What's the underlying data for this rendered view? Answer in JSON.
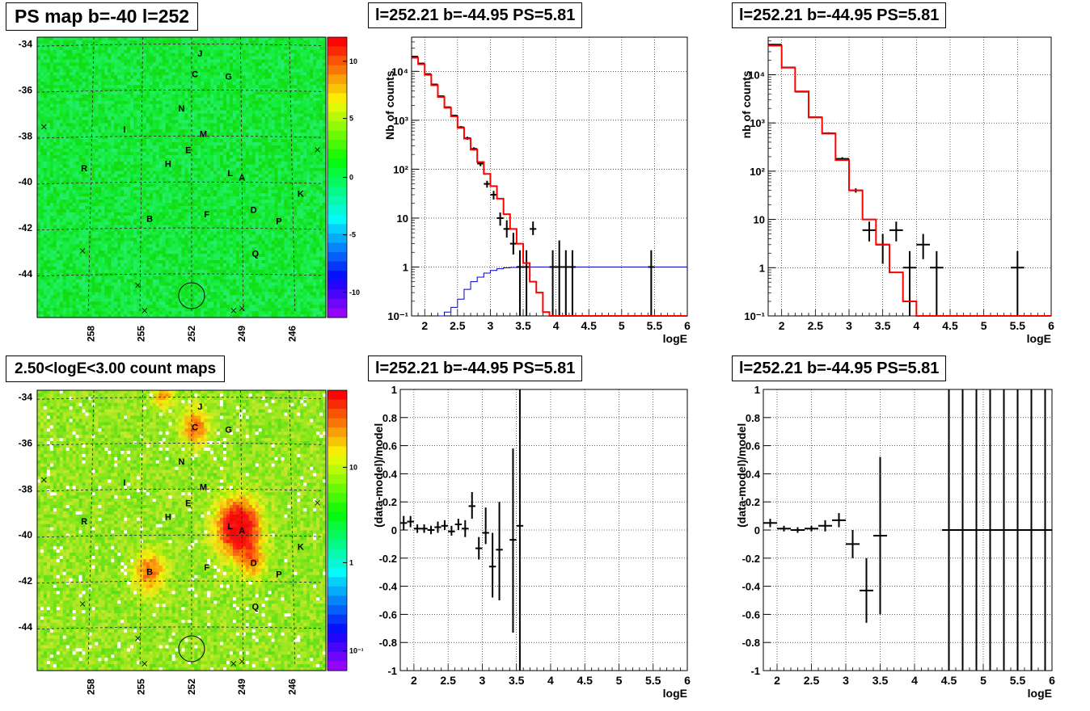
{
  "colors": {
    "red_model": "#ff0000",
    "blue_curve": "#0000cc",
    "data": "#000000"
  },
  "chart_data": [
    {
      "type": "heatmap",
      "title": "PS map b=-40 l=252",
      "x_ticks": [
        "258",
        "255",
        "252",
        "249",
        "246"
      ],
      "y_ticks": [
        "-34",
        "-36",
        "-38",
        "-40",
        "-42",
        "-44"
      ],
      "colorbar_ticks": [
        "10",
        "5",
        "0",
        "-5",
        "-10"
      ],
      "sources": [
        {
          "name": "J",
          "l": 251.5,
          "b": -34.4
        },
        {
          "name": "C",
          "l": 251.8,
          "b": -35.3
        },
        {
          "name": "G",
          "l": 249.8,
          "b": -35.4
        },
        {
          "name": "N",
          "l": 252.6,
          "b": -36.8
        },
        {
          "name": "I",
          "l": 256.0,
          "b": -37.7
        },
        {
          "name": "M",
          "l": 251.3,
          "b": -37.9
        },
        {
          "name": "E",
          "l": 252.2,
          "b": -38.6
        },
        {
          "name": "R",
          "l": 258.4,
          "b": -39.4
        },
        {
          "name": "H",
          "l": 253.4,
          "b": -39.2
        },
        {
          "name": "L",
          "l": 249.7,
          "b": -39.6
        },
        {
          "name": "A",
          "l": 249.0,
          "b": -39.8
        },
        {
          "name": "K",
          "l": 245.5,
          "b": -40.5
        },
        {
          "name": "D",
          "l": 248.3,
          "b": -41.2
        },
        {
          "name": "F",
          "l": 251.1,
          "b": -41.4
        },
        {
          "name": "P",
          "l": 246.8,
          "b": -41.7
        },
        {
          "name": "B",
          "l": 254.5,
          "b": -41.6
        },
        {
          "name": "Q",
          "l": 248.2,
          "b": -43.1
        }
      ]
    },
    {
      "type": "line",
      "title": "l=252.21 b=-44.95 PS=5.81",
      "xlabel": "logE",
      "ylabel": "Nb of counts",
      "yscale": "log",
      "xlim": [
        1.8,
        6.0
      ],
      "ylim": [
        0.1,
        50000
      ],
      "x_ticks": [
        "2",
        "2.5",
        "3",
        "3.5",
        "4",
        "4.5",
        "5",
        "5.5",
        "6"
      ],
      "y_ticks": [
        "10⁻¹",
        "1",
        "10",
        "10²",
        "10³",
        "10⁴"
      ],
      "grid": true,
      "series": [
        {
          "kind": "step",
          "color": "#ff0000",
          "edges": [
            1.8,
            1.9,
            2.0,
            2.1,
            2.2,
            2.3,
            2.4,
            2.5,
            2.6,
            2.7,
            2.8,
            2.9,
            3.0,
            3.1,
            3.2,
            3.3,
            3.4,
            3.5,
            3.6,
            3.7,
            3.8,
            3.9,
            4.0,
            4.1,
            4.2,
            4.3,
            4.4,
            4.5,
            4.6,
            4.7,
            4.8,
            4.9,
            5.0,
            5.1,
            5.2,
            5.3,
            5.4,
            5.5,
            5.6,
            5.7,
            5.8,
            5.9,
            6.0
          ],
          "values": [
            19000,
            14000,
            8500,
            5200,
            3000,
            1800,
            1200,
            700,
            420,
            250,
            140,
            80,
            45,
            25,
            12,
            6,
            3,
            1.2,
            0.5,
            0.3,
            0.12,
            0.1,
            0.1,
            0.1,
            0.1,
            0.1,
            0.1,
            0.1,
            0.1,
            0.1,
            0.1,
            0.1,
            0.1,
            0.1,
            0.1,
            0.1,
            0.1,
            0.1,
            0.1,
            0.1,
            0.1,
            0.1
          ]
        },
        {
          "kind": "step",
          "color": "#0000cc",
          "edges": [
            2.2,
            2.3,
            2.4,
            2.5,
            2.6,
            2.7,
            2.8,
            2.9,
            3.0,
            3.1,
            3.2,
            3.3,
            3.4,
            3.5,
            3.6,
            6.0
          ],
          "values": [
            0.1,
            0.12,
            0.15,
            0.22,
            0.35,
            0.5,
            0.62,
            0.75,
            0.85,
            0.92,
            0.96,
            0.98,
            1.0,
            1.0,
            1.0,
            1.0
          ]
        },
        {
          "kind": "errorbar",
          "color": "#000000",
          "x": [
            1.85,
            1.95,
            2.05,
            2.15,
            2.25,
            2.35,
            2.45,
            2.55,
            2.65,
            2.75,
            2.85,
            2.95,
            3.05,
            3.15,
            3.25,
            3.35,
            3.45,
            3.55,
            3.65,
            3.95,
            4.05,
            4.15,
            4.25,
            5.45
          ],
          "y": [
            20000,
            14500,
            8800,
            5400,
            3100,
            1850,
            1250,
            720,
            430,
            260,
            130,
            50,
            30,
            10,
            6,
            3,
            1,
            1,
            6,
            1,
            1,
            1,
            1,
            1
          ],
          "xerr": 0.05,
          "ylo": [
            19800,
            14300,
            8600,
            5300,
            3000,
            1800,
            1200,
            680,
            400,
            240,
            115,
            42,
            24,
            7,
            4,
            1.8,
            0.1,
            0.1,
            4.5,
            0.1,
            0.1,
            0.1,
            0.1,
            0.1
          ],
          "yhi": [
            20200,
            14700,
            9000,
            5500,
            3200,
            1900,
            1300,
            760,
            460,
            280,
            145,
            58,
            36,
            13,
            9,
            5,
            2.2,
            2.2,
            8.5,
            2.2,
            3.5,
            2.2,
            2.2,
            2.2
          ]
        }
      ]
    },
    {
      "type": "line",
      "title": "l=252.21 b=-44.95 PS=5.81",
      "xlabel": "logE",
      "ylabel": "nb of counts",
      "yscale": "log",
      "xlim": [
        1.8,
        6.0
      ],
      "ylim": [
        0.1,
        60000
      ],
      "x_ticks": [
        "2",
        "2.5",
        "3",
        "3.5",
        "4",
        "4.5",
        "5",
        "5.5",
        "6"
      ],
      "y_ticks": [
        "10⁻¹",
        "1",
        "10",
        "10²",
        "10³",
        "10⁴"
      ],
      "grid": true,
      "series": [
        {
          "kind": "step",
          "color": "#ff0000",
          "edges": [
            1.8,
            2.0,
            2.2,
            2.4,
            2.6,
            2.8,
            3.0,
            3.2,
            3.4,
            3.6,
            3.8,
            4.0,
            6.0
          ],
          "values": [
            40000,
            14000,
            4500,
            1300,
            600,
            170,
            40,
            10,
            3,
            0.8,
            0.2,
            0.1
          ]
        },
        {
          "kind": "errorbar",
          "color": "#000000",
          "x": [
            1.9,
            2.1,
            2.3,
            2.5,
            2.7,
            2.9,
            3.1,
            3.3,
            3.5,
            3.7,
            3.9,
            4.1,
            4.3,
            5.5
          ],
          "y": [
            42000,
            14100,
            4450,
            1310,
            610,
            180,
            40,
            6,
            3,
            6,
            1,
            3,
            1,
            1
          ],
          "xerr": 0.1,
          "ylo": [
            41500,
            13900,
            4350,
            1270,
            580,
            165,
            36,
            3.5,
            1.2,
            3.5,
            0.1,
            1.5,
            0.1,
            0.1
          ],
          "yhi": [
            42500,
            14300,
            4550,
            1350,
            640,
            195,
            44,
            9,
            5,
            9,
            2.2,
            5,
            2.2,
            2.2
          ]
        }
      ]
    },
    {
      "type": "heatmap",
      "title": "2.50<logE<3.00 count maps",
      "x_ticks": [
        "258",
        "255",
        "252",
        "249",
        "246"
      ],
      "y_ticks": [
        "-34",
        "-36",
        "-38",
        "-40",
        "-42",
        "-44"
      ],
      "colorbar_ticks": [
        "10",
        "1",
        "10⁻¹"
      ],
      "sources_ref": "same as PS map"
    },
    {
      "type": "scatter",
      "title": "l=252.21 b=-44.95 PS=5.81",
      "xlabel": "logE",
      "ylabel": "(data-model)/model",
      "xlim": [
        1.8,
        6.0
      ],
      "ylim": [
        -1,
        1
      ],
      "x_ticks": [
        "2",
        "2.5",
        "3",
        "3.5",
        "4",
        "4.5",
        "5",
        "5.5",
        "6"
      ],
      "y_ticks": [
        "1",
        "0.8",
        "0.6",
        "0.4",
        "0.2",
        "0",
        "-0.2",
        "-0.4",
        "-0.6",
        "-0.8",
        "-1"
      ],
      "grid": true,
      "x": [
        1.85,
        1.95,
        2.05,
        2.15,
        2.25,
        2.35,
        2.45,
        2.55,
        2.65,
        2.75,
        2.85,
        2.95,
        3.05,
        3.15,
        3.25,
        3.45,
        3.55
      ],
      "y": [
        0.05,
        0.06,
        0.01,
        0.01,
        0.0,
        0.02,
        0.03,
        -0.01,
        0.04,
        0.01,
        0.17,
        -0.13,
        -0.02,
        -0.26,
        -0.14,
        -0.07,
        0.03
      ],
      "ylo": [
        0.0,
        0.02,
        -0.02,
        -0.02,
        -0.03,
        -0.02,
        0.0,
        -0.04,
        0.0,
        -0.05,
        0.08,
        -0.21,
        -0.1,
        -0.48,
        -0.5,
        -0.73,
        -1.0
      ],
      "yhi": [
        0.1,
        0.1,
        0.04,
        0.04,
        0.03,
        0.06,
        0.07,
        0.03,
        0.08,
        0.07,
        0.27,
        -0.05,
        0.16,
        -0.02,
        0.2,
        0.58,
        1.0
      ],
      "xerr": 0.05
    },
    {
      "type": "scatter",
      "title": "l=252.21 b=-44.95 PS=5.81",
      "xlabel": "logE",
      "ylabel": "(data-model)/model",
      "xlim": [
        1.8,
        6.0
      ],
      "ylim": [
        -1,
        1
      ],
      "x_ticks": [
        "2",
        "2.5",
        "3",
        "3.5",
        "4",
        "4.5",
        "5",
        "5.5",
        "6"
      ],
      "y_ticks": [
        "1",
        "0.8",
        "0.6",
        "0.4",
        "0.2",
        "0",
        "-0.2",
        "-0.4",
        "-0.6",
        "-0.8",
        "-1"
      ],
      "grid": true,
      "x": [
        1.9,
        2.1,
        2.3,
        2.5,
        2.7,
        2.9,
        3.1,
        3.3,
        3.5,
        4.5,
        4.7,
        4.9,
        5.1,
        5.3,
        5.5,
        5.7,
        5.9
      ],
      "y": [
        0.05,
        0.01,
        0.0,
        0.01,
        0.03,
        0.07,
        -0.1,
        -0.43,
        -0.04,
        0,
        0,
        0,
        0,
        0,
        0,
        0,
        0
      ],
      "ylo": [
        0.02,
        -0.01,
        -0.02,
        -0.01,
        -0.01,
        0.02,
        -0.2,
        -0.66,
        -0.6,
        -1,
        -1,
        -1,
        -1,
        -1,
        -1,
        -1,
        -1
      ],
      "yhi": [
        0.08,
        0.03,
        0.02,
        0.03,
        0.07,
        0.12,
        0.0,
        -0.2,
        0.52,
        1,
        1,
        1,
        1,
        1,
        1,
        1,
        1
      ],
      "xerr": 0.1
    }
  ]
}
